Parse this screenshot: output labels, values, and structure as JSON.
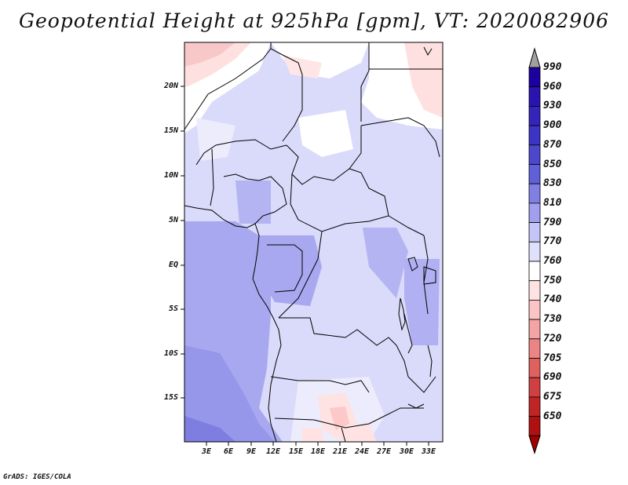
{
  "title": "Geopotential Height at 925hPa [gpm], VT: 2020082906",
  "footer": "GrADS: IGES/COLA",
  "lat_labels": [
    "20N",
    "15N",
    "10N",
    "5N",
    "EQ",
    "5S",
    "10S",
    "15S"
  ],
  "lon_labels": [
    "3E",
    "6E",
    "9E",
    "12E",
    "15E",
    "18E",
    "21E",
    "24E",
    "27E",
    "30E",
    "33E"
  ],
  "colorbar": {
    "labels": [
      "990",
      "960",
      "930",
      "900",
      "870",
      "850",
      "830",
      "810",
      "790",
      "770",
      "760",
      "750",
      "740",
      "730",
      "720",
      "705",
      "690",
      "675",
      "650"
    ],
    "colors": [
      "#1e00a0",
      "#2a14b0",
      "#3424bc",
      "#3c34c4",
      "#4c48cc",
      "#6060d8",
      "#8080e4",
      "#a0a0ee",
      "#c4c4f6",
      "#e0e0fc",
      "#ffffff",
      "#ffe2e2",
      "#fcc4c4",
      "#f4a4a4",
      "#ec8484",
      "#e06060",
      "#d04040",
      "#c02424",
      "#b01010"
    ],
    "top_arrow_color": "#a0a0a0",
    "bottom_arrow_color": "#a00000"
  }
}
